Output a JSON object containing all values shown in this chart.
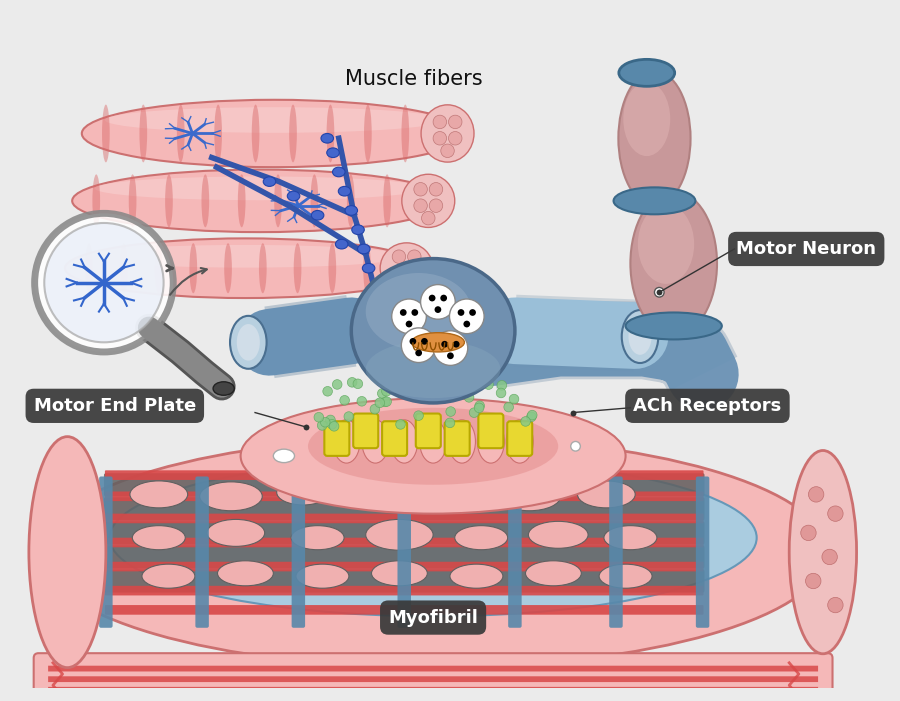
{
  "bg_color": "#ebebeb",
  "labels": {
    "muscle_fibers": "Muscle fibers",
    "motor_neuron": "Motor Neuron",
    "motor_end_plate": "Motor End Plate",
    "ach_receptors": "ACh Receptors",
    "myofibril": "Myofibril"
  },
  "colors": {
    "muscle_pink_light": "#f5b8b8",
    "muscle_pink_mid": "#e89898",
    "muscle_pink_dark": "#cc7070",
    "muscle_stripe_dark": "#d96868",
    "muscle_stripe_light": "#f0c8c8",
    "blue_nerve": "#6a92b5",
    "blue_nerve_dark": "#4a6f90",
    "blue_nerve_light": "#9abfd8",
    "blue_nerve_cap": "#b8d0e0",
    "terminal_body": "#6a8fb5",
    "terminal_dark": "#4a6f90",
    "terminal_light": "#8aaec8",
    "motor_arm_pink": "#c8989a",
    "motor_arm_light": "#ddb0b0",
    "motor_arm_dark": "#b08080",
    "blue_band": "#5888aa",
    "gray_mag": "#888888",
    "gray_mag_dark": "#555555",
    "gray_mag_light": "#aaaaaa",
    "white": "#ffffff",
    "yellow_rec": "#e8d830",
    "yellow_rec_dark": "#b8a800",
    "green_dot": "#88c888",
    "dark_label": "#3a3a3a",
    "label_text": "#ffffff",
    "myofibril_blue": "#aacce0",
    "myofibril_blue_dark": "#6698b8",
    "myofibril_blue_vert": "#5888aa",
    "myofibril_red": "#d84848",
    "myofibril_gray": "#606060",
    "myofibril_hole": "#f0b0b0",
    "black": "#111111",
    "orange_mito": "#e09040",
    "dot_cap": "#e08080"
  }
}
